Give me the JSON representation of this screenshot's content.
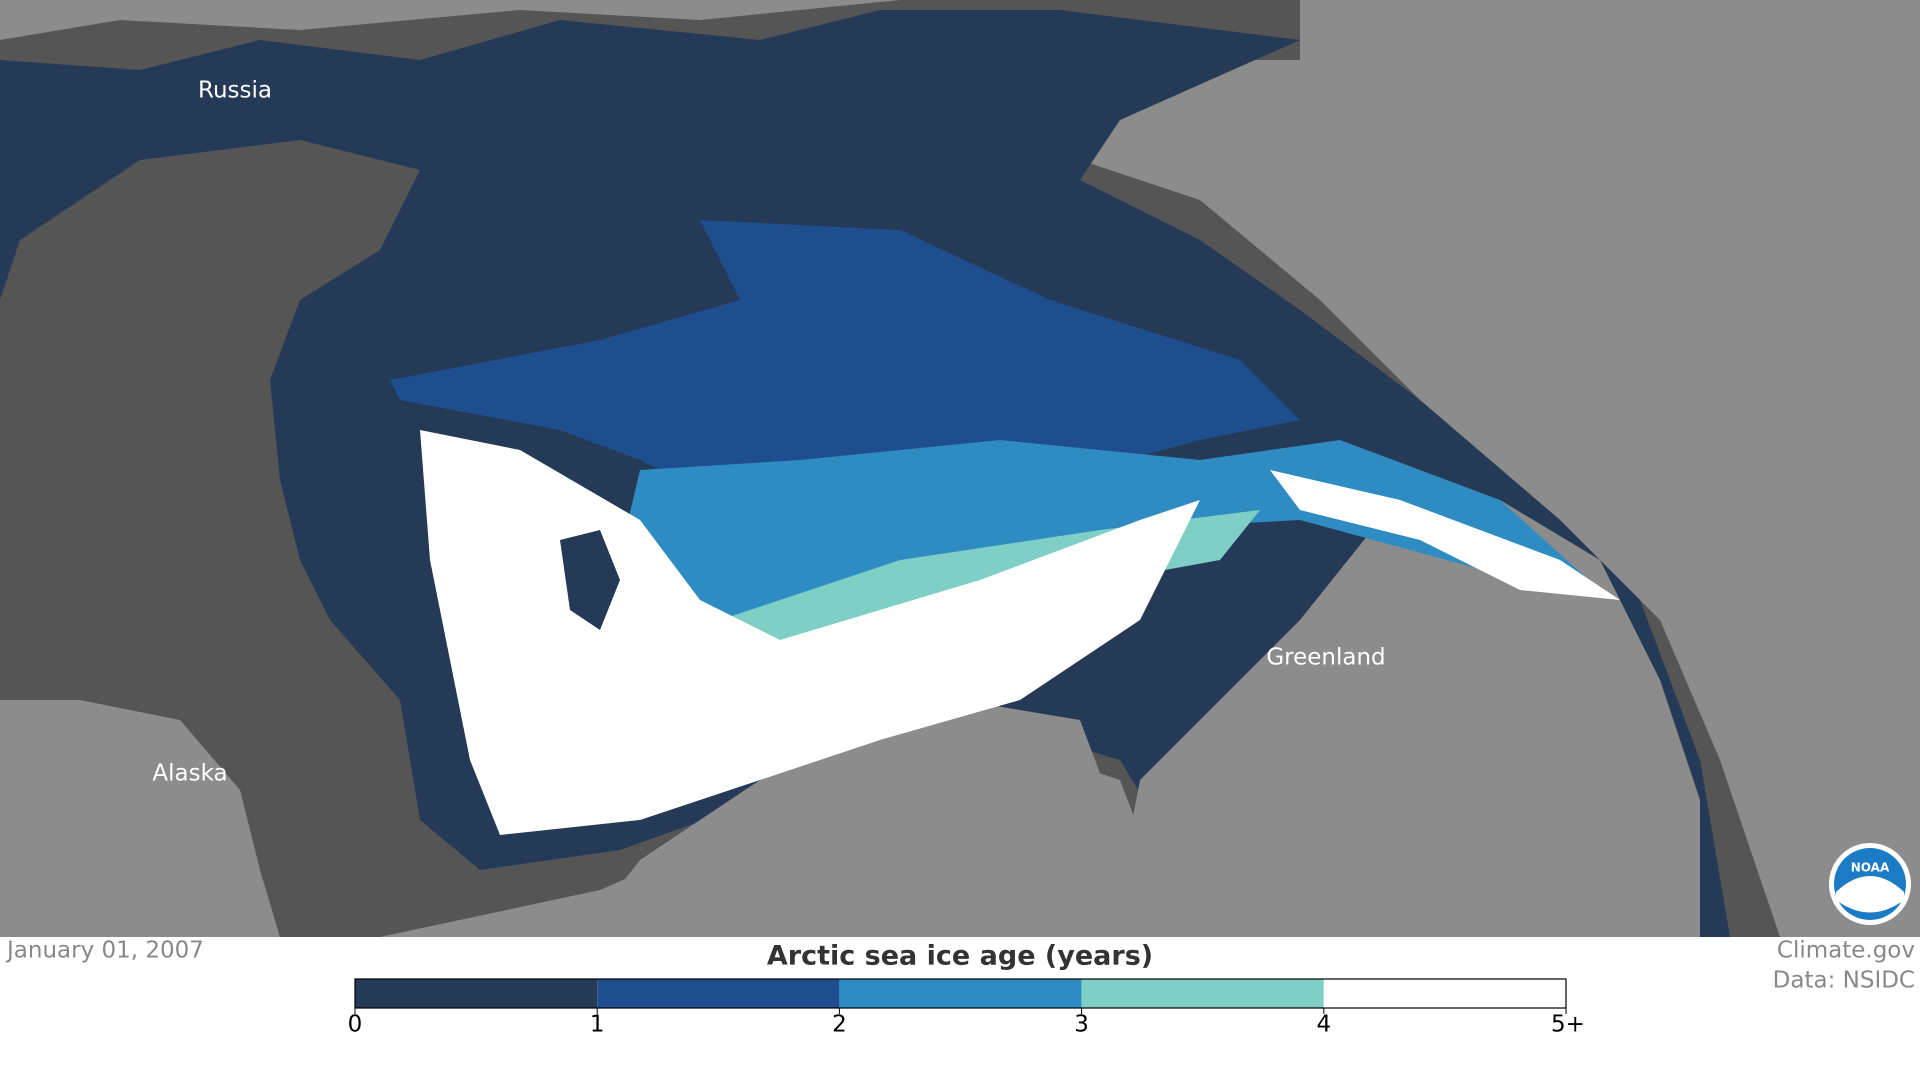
{
  "map": {
    "labels": [
      "Russia",
      "Alaska",
      "Greenland"
    ]
  },
  "date": "January 01, 2007",
  "legend": {
    "title": "Arctic sea ice age (years)",
    "colors": [
      "#243a56",
      "#1f4e8f",
      "#2e8cc3",
      "#7fcfc6",
      "#ffffff"
    ],
    "ticks": [
      0,
      1,
      2,
      3,
      4,
      {
        "value": 5,
        "label": "5+"
      }
    ]
  },
  "credits": [
    "Climate.gov",
    "Data: NSIDC"
  ]
}
